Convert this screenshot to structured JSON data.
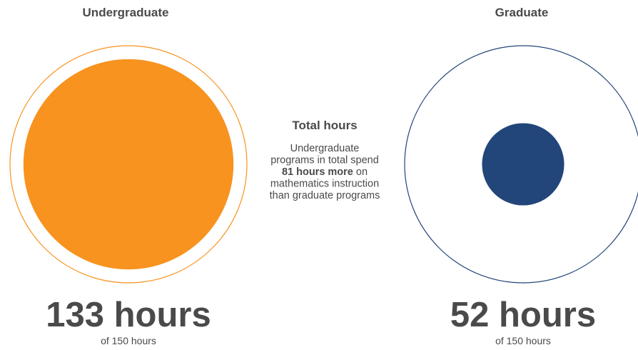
{
  "chart_data": {
    "type": "proportional-circle",
    "max": 150,
    "series": [
      {
        "name": "Undergraduate",
        "color": "#f7931e",
        "value": 133,
        "value_label": "133 hours",
        "total_label": "of 150 hours"
      },
      {
        "name": "Graduate",
        "color": "#22467a",
        "value": 52,
        "value_label": "52 hours",
        "total_label": "of 150 hours"
      }
    ],
    "annotation": {
      "title": "Total hours",
      "lines": [
        "Undergraduate",
        "programs in total spend"
      ],
      "highlight": "81 hours more",
      "highlight_after": "on",
      "lines_after": [
        "mathematics instruction",
        "than graduate programs"
      ]
    }
  }
}
